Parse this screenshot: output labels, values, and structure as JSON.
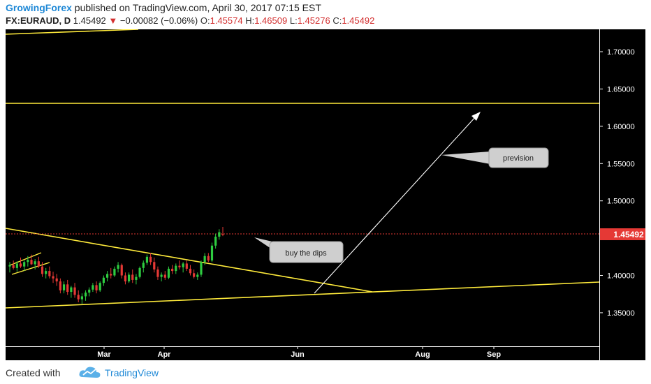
{
  "header": {
    "author": "GrowingForex",
    "published_text": "published on TradingView.com, April 30, 2017 07:15 EST",
    "symbol": "FX:EURAUD, D",
    "last": "1.45492",
    "change": "−0.00082 (−0.06%)",
    "o_label": "O:",
    "o_value": "1.45574",
    "h_label": "H:",
    "h_value": "1.46509",
    "l_label": "L:",
    "l_value": "1.45276",
    "c_label": "C:",
    "c_value": "1.45492"
  },
  "footer": {
    "created_with": "Created with",
    "brand": "TradingView"
  },
  "colors": {
    "background": "#000000",
    "up_candle": "#2ecc40",
    "down_candle": "#e53935",
    "trendline": "#ffeb3b",
    "arrow": "#ffffff",
    "price_tag": "#e53935",
    "brand_blue": "#1e88d6"
  },
  "chart_data": {
    "type": "candlestick",
    "symbol": "FX:EURAUD",
    "interval": "D",
    "ylim": [
      1.305,
      1.73
    ],
    "y_ticks": [
      "1.70000",
      "1.65000",
      "1.60000",
      "1.55000",
      "1.50000",
      "1.40000",
      "1.35000"
    ],
    "x_ticks": [
      "Mar",
      "Apr",
      "Jun",
      "Aug",
      "Sep"
    ],
    "last_price_label": "1.45492",
    "last_price": 1.45492,
    "annotations": [
      "buy the dips",
      "prevision"
    ],
    "candles": [
      [
        1.412,
        1.418,
        1.404,
        1.414
      ],
      [
        1.414,
        1.42,
        1.408,
        1.41
      ],
      [
        1.41,
        1.419,
        1.405,
        1.416
      ],
      [
        1.416,
        1.424,
        1.41,
        1.412
      ],
      [
        1.412,
        1.42,
        1.406,
        1.418
      ],
      [
        1.418,
        1.426,
        1.412,
        1.421
      ],
      [
        1.421,
        1.428,
        1.414,
        1.415
      ],
      [
        1.415,
        1.422,
        1.408,
        1.419
      ],
      [
        1.419,
        1.425,
        1.41,
        1.412
      ],
      [
        1.412,
        1.418,
        1.398,
        1.402
      ],
      [
        1.402,
        1.41,
        1.396,
        1.406
      ],
      [
        1.406,
        1.412,
        1.396,
        1.399
      ],
      [
        1.399,
        1.405,
        1.39,
        1.396
      ],
      [
        1.396,
        1.402,
        1.386,
        1.392
      ],
      [
        1.392,
        1.396,
        1.376,
        1.38
      ],
      [
        1.38,
        1.392,
        1.376,
        1.388
      ],
      [
        1.388,
        1.394,
        1.374,
        1.378
      ],
      [
        1.378,
        1.386,
        1.37,
        1.384
      ],
      [
        1.384,
        1.39,
        1.37,
        1.374
      ],
      [
        1.374,
        1.38,
        1.364,
        1.368
      ],
      [
        1.368,
        1.376,
        1.362,
        1.372
      ],
      [
        1.372,
        1.38,
        1.366,
        1.377
      ],
      [
        1.377,
        1.384,
        1.372,
        1.381
      ],
      [
        1.381,
        1.39,
        1.378,
        1.387
      ],
      [
        1.387,
        1.392,
        1.376,
        1.38
      ],
      [
        1.38,
        1.392,
        1.378,
        1.39
      ],
      [
        1.39,
        1.4,
        1.386,
        1.397
      ],
      [
        1.397,
        1.406,
        1.392,
        1.402
      ],
      [
        1.402,
        1.41,
        1.396,
        1.4
      ],
      [
        1.4,
        1.412,
        1.398,
        1.409
      ],
      [
        1.409,
        1.418,
        1.404,
        1.414
      ],
      [
        1.414,
        1.416,
        1.396,
        1.4
      ],
      [
        1.4,
        1.404,
        1.388,
        1.392
      ],
      [
        1.392,
        1.404,
        1.39,
        1.401
      ],
      [
        1.401,
        1.408,
        1.39,
        1.394
      ],
      [
        1.394,
        1.402,
        1.388,
        1.398
      ],
      [
        1.398,
        1.412,
        1.396,
        1.41
      ],
      [
        1.41,
        1.42,
        1.404,
        1.417
      ],
      [
        1.417,
        1.428,
        1.414,
        1.425
      ],
      [
        1.425,
        1.43,
        1.414,
        1.418
      ],
      [
        1.418,
        1.424,
        1.404,
        1.408
      ],
      [
        1.408,
        1.412,
        1.394,
        1.398
      ],
      [
        1.398,
        1.404,
        1.392,
        1.401
      ],
      [
        1.401,
        1.406,
        1.394,
        1.397
      ],
      [
        1.397,
        1.412,
        1.395,
        1.409
      ],
      [
        1.409,
        1.414,
        1.402,
        1.406
      ],
      [
        1.406,
        1.416,
        1.402,
        1.413
      ],
      [
        1.413,
        1.42,
        1.408,
        1.411
      ],
      [
        1.411,
        1.418,
        1.404,
        1.416
      ],
      [
        1.416,
        1.42,
        1.406,
        1.409
      ],
      [
        1.409,
        1.414,
        1.4,
        1.403
      ],
      [
        1.403,
        1.408,
        1.396,
        1.398
      ],
      [
        1.398,
        1.404,
        1.394,
        1.401
      ],
      [
        1.401,
        1.42,
        1.398,
        1.418
      ],
      [
        1.418,
        1.43,
        1.414,
        1.426
      ],
      [
        1.426,
        1.43,
        1.418,
        1.42
      ],
      [
        1.42,
        1.444,
        1.418,
        1.44
      ],
      [
        1.44,
        1.456,
        1.436,
        1.452
      ],
      [
        1.452,
        1.462,
        1.448,
        1.458
      ],
      [
        1.4557,
        1.4651,
        1.4528,
        1.4549
      ]
    ]
  }
}
